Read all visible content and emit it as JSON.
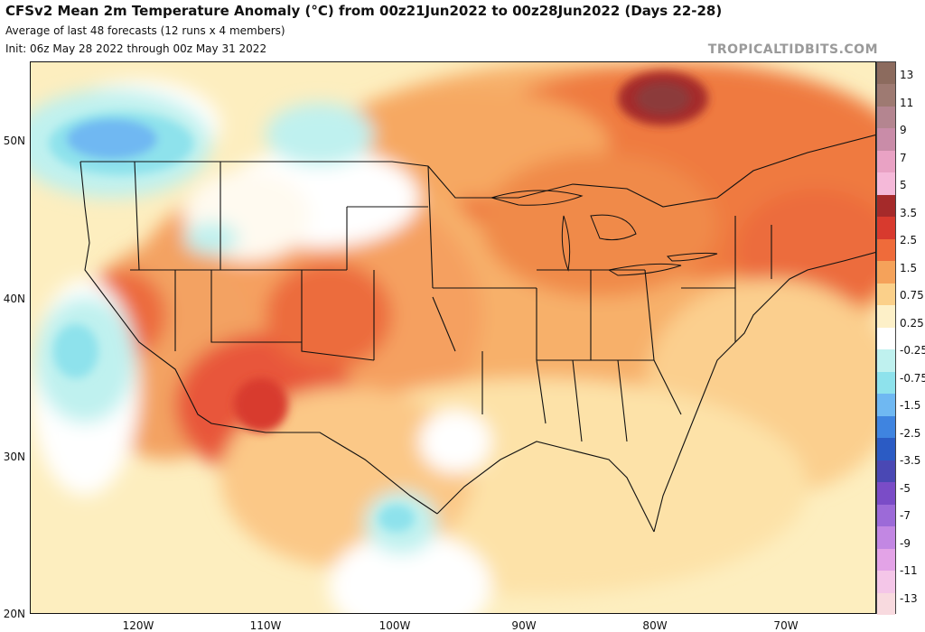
{
  "header": {
    "title": "CFSv2 Mean 2m Temperature Anomaly (°C) from 00z21Jun2022 to 00z28Jun2022 (Days 22-28)",
    "subtitle1": "Average of last 48 forecasts (12 runs x 4 members)",
    "subtitle2": "Init: 06z May 28 2022 through 00z May 31 2022",
    "brand": "TROPICALTIDBITS.COM"
  },
  "axes": {
    "lat_labels": [
      "50N",
      "40N",
      "30N",
      "20N"
    ],
    "lon_labels": [
      "120W",
      "110W",
      "100W",
      "90W",
      "80W",
      "70W"
    ]
  },
  "colorbar": {
    "labels": [
      "13",
      "11",
      "9",
      "7",
      "5",
      "3.5",
      "2.5",
      "1.5",
      "0.75",
      "0.25",
      "-0.25",
      "-0.75",
      "-1.5",
      "-2.5",
      "-3.5",
      "-5",
      "-7",
      "-9",
      "-11",
      "-13"
    ],
    "colors": [
      "#8c6b5e",
      "#9e7a72",
      "#b48590",
      "#c98ca8",
      "#e9a2c4",
      "#f5b9d9",
      "#a52a2a",
      "#d83a2e",
      "#ef6b3a",
      "#f5a25a",
      "#fbd08a",
      "#fdf0c8",
      "#ffffff",
      "#bff1ef",
      "#8ee2ec",
      "#6fb8f2",
      "#3f84e0",
      "#2b5bc4",
      "#4a48b4",
      "#7a4cc7",
      "#9c6ad8",
      "#c287e3",
      "#e3a3e7",
      "#f4c6e8",
      "#f8dadf"
    ]
  }
}
